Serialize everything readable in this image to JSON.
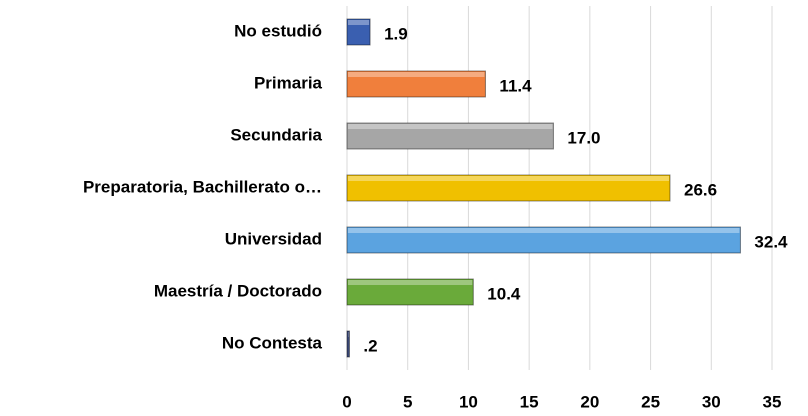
{
  "chart_data": {
    "type": "bar",
    "orientation": "horizontal",
    "categories": [
      "No estudió",
      "Primaria",
      "Secundaria",
      "Preparatoria, Bachillerato o…",
      "Universidad",
      "Maestría / Doctorado",
      "No Contesta"
    ],
    "values": [
      1.9,
      11.4,
      17.0,
      26.6,
      32.4,
      10.4,
      0.2
    ],
    "value_labels": [
      "1.9",
      "11.4",
      "17.0",
      "26.6",
      "32.4",
      "10.4",
      ".2"
    ],
    "colors": [
      "#3a5fb0",
      "#f07f3c",
      "#a6a6a6",
      "#f0c000",
      "#5ba3e0",
      "#6aaa3a",
      "#3b4a7a"
    ],
    "xlim": [
      0,
      35
    ],
    "xticks": [
      0,
      5,
      10,
      15,
      20,
      25,
      30,
      35
    ],
    "grid": true
  }
}
